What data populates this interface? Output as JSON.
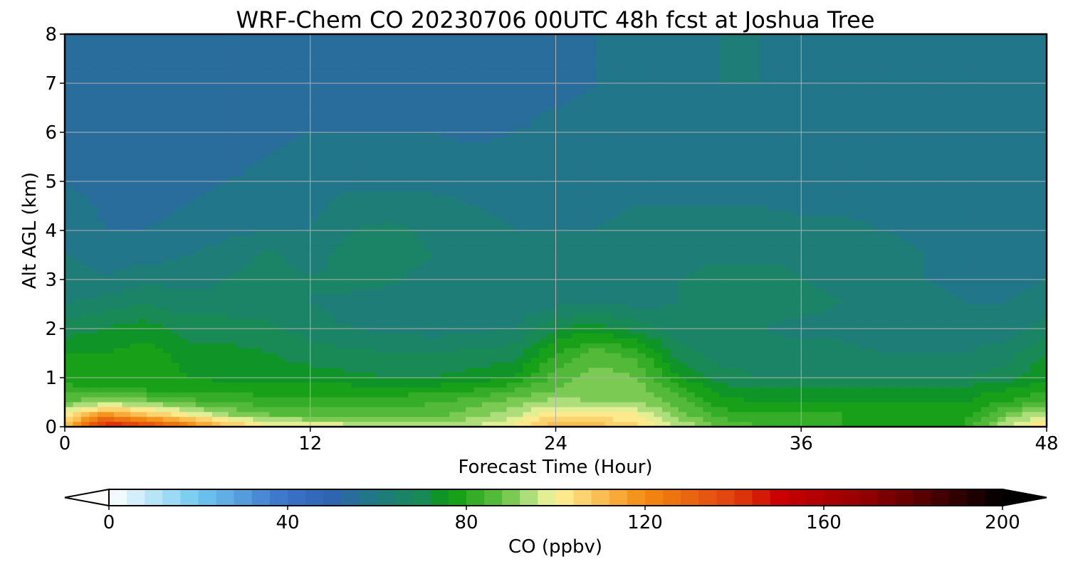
{
  "chart_data": {
    "type": "heatmap",
    "title": "WRF-Chem CO  20230706 00UTC 48h fcst at Joshua Tree",
    "xlabel": "Forecast Time (Hour)",
    "ylabel": "Alt AGL (km)",
    "xlim": [
      0,
      48
    ],
    "ylim": [
      0,
      8
    ],
    "xticks": [
      0,
      12,
      24,
      36,
      48
    ],
    "yticks": [
      0,
      1,
      2,
      3,
      4,
      5,
      6,
      7,
      8
    ],
    "grid": true,
    "x_hours": [
      0,
      2,
      4,
      6,
      8,
      10,
      12,
      14,
      16,
      18,
      20,
      22,
      24,
      26,
      28,
      30,
      32,
      34,
      36,
      38,
      40,
      42,
      44,
      46,
      48
    ],
    "y_km": [
      0,
      0.25,
      0.5,
      0.75,
      1.0,
      1.5,
      2.0,
      2.5,
      3.0,
      3.5,
      4.0,
      5.0,
      6.0,
      7.0,
      8.0
    ],
    "values_ppbv": [
      [
        108,
        150,
        140,
        125,
        110,
        102,
        100,
        98,
        96,
        94,
        97,
        100,
        112,
        110,
        106,
        96,
        88,
        84,
        82,
        80,
        78,
        76,
        80,
        96,
        104
      ],
      [
        100,
        118,
        108,
        100,
        92,
        88,
        86,
        86,
        86,
        86,
        90,
        95,
        104,
        102,
        100,
        90,
        82,
        80,
        80,
        80,
        78,
        76,
        78,
        88,
        96
      ],
      [
        88,
        92,
        90,
        86,
        84,
        82,
        82,
        82,
        82,
        84,
        86,
        90,
        94,
        92,
        92,
        86,
        78,
        76,
        76,
        76,
        76,
        76,
        76,
        80,
        86
      ],
      [
        82,
        80,
        80,
        78,
        78,
        78,
        78,
        78,
        78,
        78,
        80,
        84,
        88,
        90,
        90,
        82,
        74,
        72,
        72,
        72,
        72,
        74,
        74,
        76,
        78
      ],
      [
        78,
        77,
        79,
        76,
        75,
        74,
        74,
        73,
        72,
        72,
        74,
        76,
        86,
        90,
        88,
        76,
        70,
        68,
        68,
        68,
        68,
        68,
        68,
        70,
        76
      ],
      [
        76,
        76,
        78,
        74,
        73,
        72,
        70,
        69,
        68,
        68,
        69,
        70,
        80,
        86,
        82,
        70,
        66,
        66,
        65,
        65,
        64,
        64,
        64,
        66,
        72
      ],
      [
        70,
        72,
        74,
        70,
        70,
        69,
        66,
        64,
        63,
        62,
        63,
        64,
        72,
        74,
        70,
        66,
        64,
        64,
        63,
        63,
        62,
        62,
        62,
        62,
        66
      ],
      [
        64,
        66,
        68,
        66,
        66,
        66,
        64,
        62,
        61,
        60,
        60,
        61,
        63,
        64,
        63,
        64,
        66,
        66,
        65,
        64,
        62,
        61,
        60,
        60,
        62
      ],
      [
        62,
        60,
        63,
        62,
        64,
        66,
        64,
        66,
        65,
        62,
        60,
        60,
        61,
        62,
        63,
        64,
        66,
        66,
        64,
        63,
        61,
        60,
        59,
        59,
        60
      ],
      [
        60,
        58,
        58,
        60,
        62,
        65,
        62,
        66,
        66,
        64,
        61,
        60,
        60,
        61,
        62,
        62,
        63,
        63,
        63,
        62,
        61,
        60,
        59,
        58,
        58
      ],
      [
        58,
        56,
        56,
        57,
        59,
        60,
        60,
        64,
        65,
        63,
        61,
        60,
        60,
        60,
        61,
        61,
        61,
        61,
        61,
        61,
        60,
        59,
        58,
        57,
        57
      ],
      [
        56,
        55,
        55,
        55,
        56,
        57,
        58,
        59,
        59,
        59,
        59,
        59,
        59,
        59,
        59,
        59,
        59,
        59,
        58,
        58,
        57,
        57,
        56,
        56,
        56
      ],
      [
        54,
        53,
        53,
        53,
        54,
        55,
        56,
        56,
        56,
        56,
        55,
        56,
        57,
        57,
        57,
        57,
        57,
        57,
        57,
        57,
        56,
        56,
        56,
        56,
        57
      ],
      [
        53,
        52,
        52,
        52,
        53,
        53,
        54,
        55,
        55,
        53,
        53,
        54,
        55,
        56,
        58,
        59,
        60,
        60,
        59,
        59,
        59,
        59,
        59,
        58,
        57
      ],
      [
        54,
        53,
        53,
        53,
        54,
        54,
        54,
        55,
        55,
        53,
        53,
        54,
        55,
        56,
        58,
        60,
        60,
        60,
        60,
        60,
        59,
        59,
        58,
        57,
        56
      ]
    ],
    "colorbar": {
      "label": "CO  (ppbv)",
      "min": 0,
      "max": 200,
      "ticks": [
        0,
        40,
        80,
        120,
        160,
        200
      ],
      "extend": "both",
      "colors": [
        {
          "v": 0,
          "c": "#ffffff"
        },
        {
          "v": 20,
          "c": "#70c8f0"
        },
        {
          "v": 40,
          "c": "#3a70c8"
        },
        {
          "v": 50,
          "c": "#2f64b0"
        },
        {
          "v": 60,
          "c": "#1f7a7f"
        },
        {
          "v": 70,
          "c": "#198a55"
        },
        {
          "v": 76,
          "c": "#0a9a10"
        },
        {
          "v": 88,
          "c": "#60c040"
        },
        {
          "v": 96,
          "c": "#c8e890"
        },
        {
          "v": 100,
          "c": "#fff49a"
        },
        {
          "v": 108,
          "c": "#fcc860"
        },
        {
          "v": 120,
          "c": "#f48a10"
        },
        {
          "v": 140,
          "c": "#e04010"
        },
        {
          "v": 150,
          "c": "#cc0000"
        },
        {
          "v": 170,
          "c": "#900000"
        },
        {
          "v": 200,
          "c": "#000000"
        }
      ]
    }
  }
}
